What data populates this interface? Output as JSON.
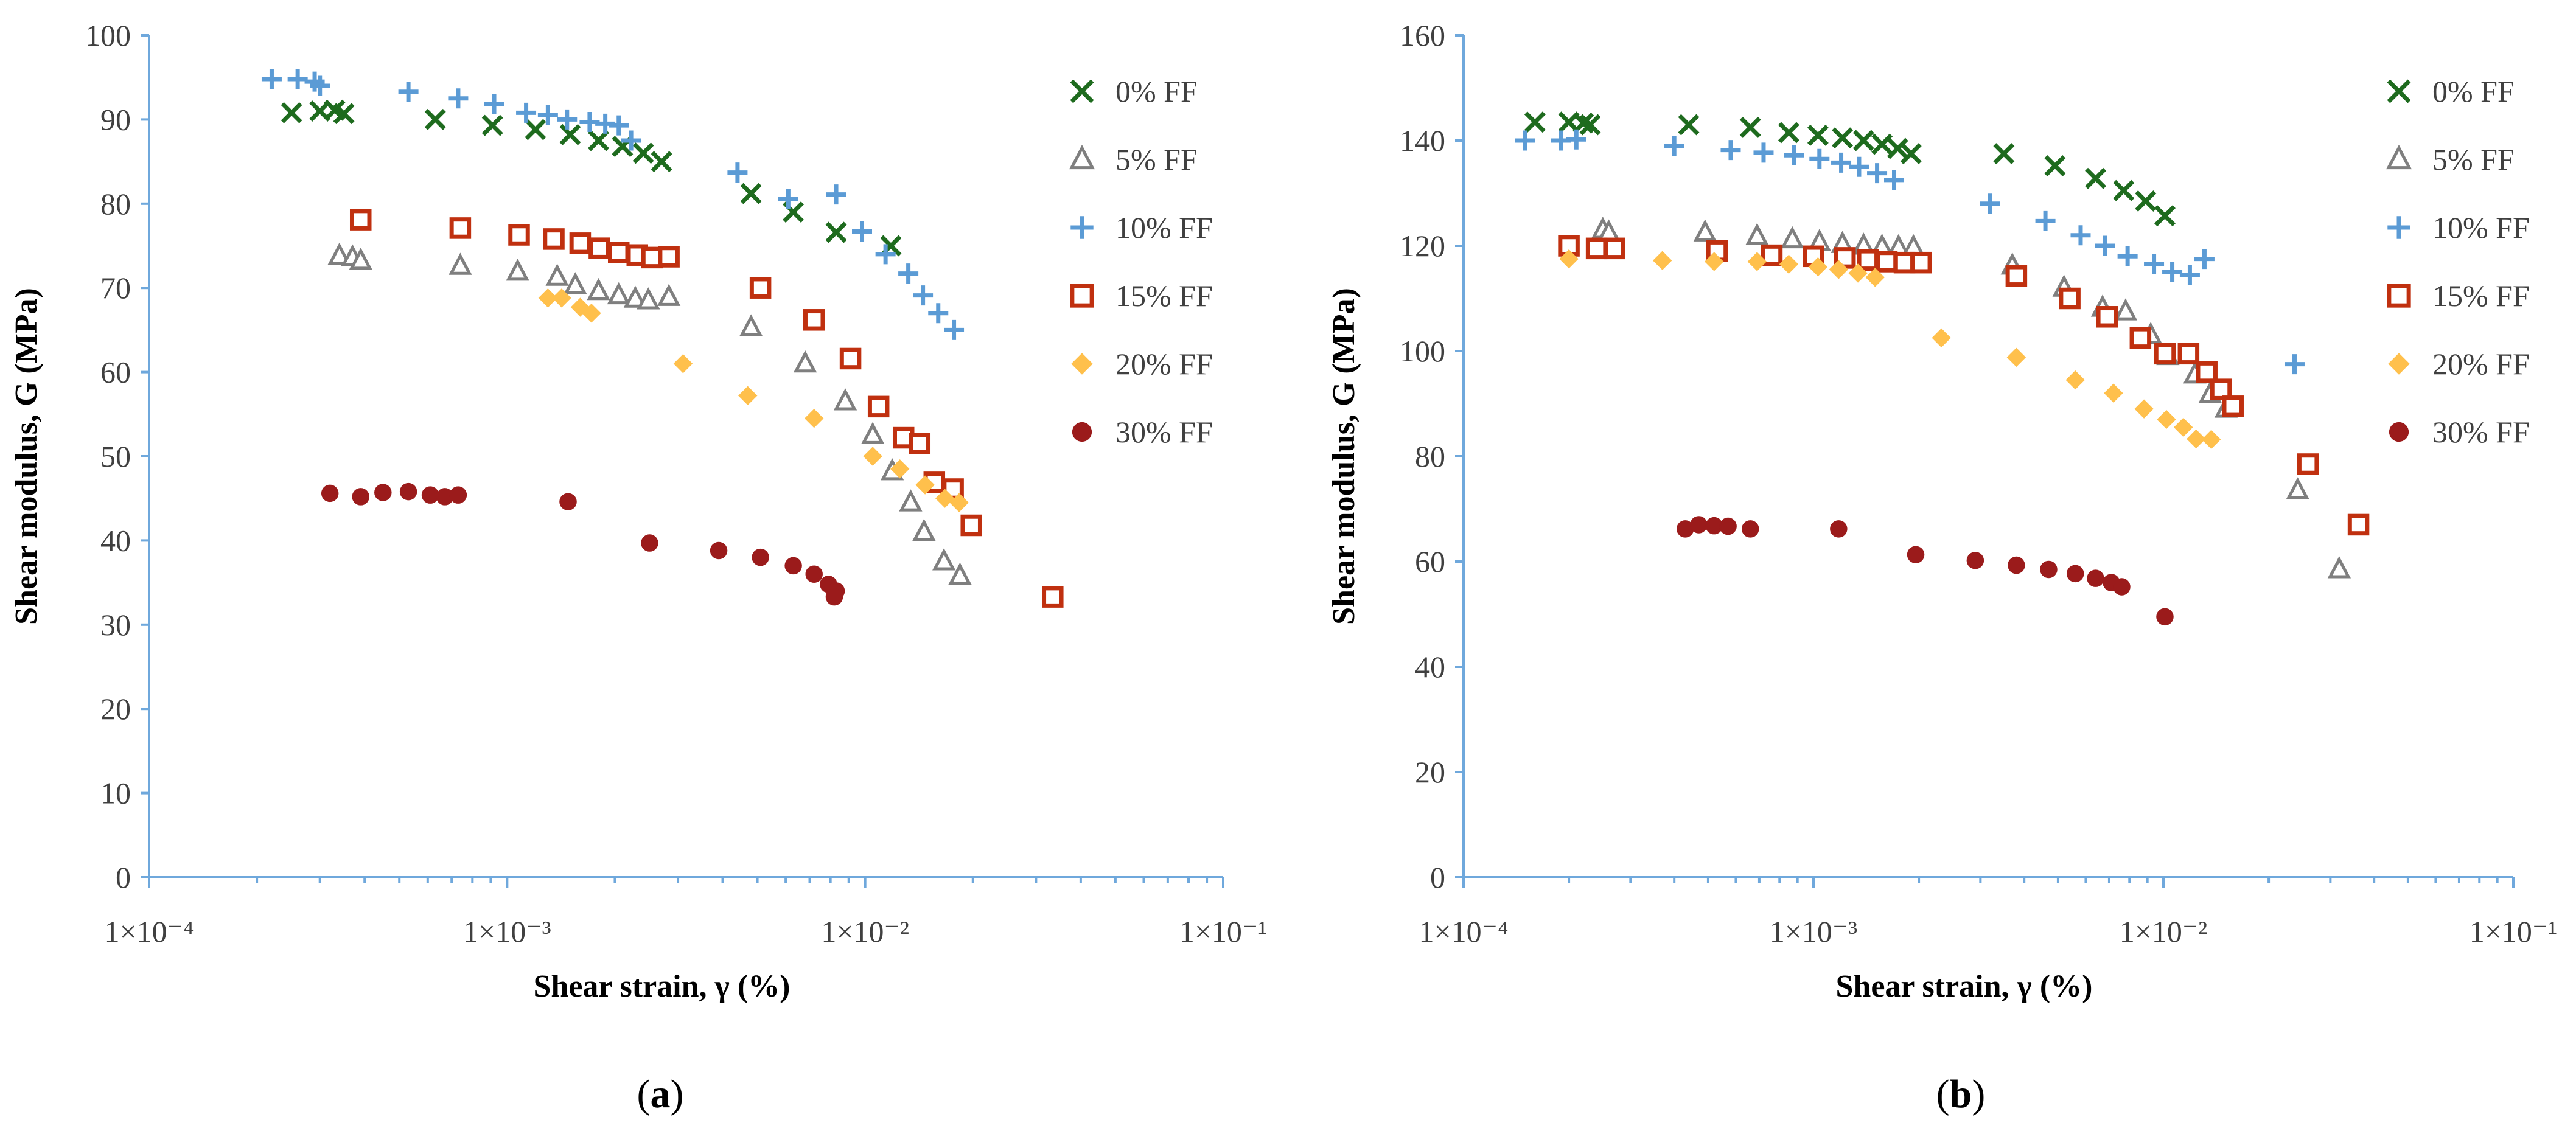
{
  "chart_data": [
    {
      "type": "scatter",
      "panel_label": "a",
      "xlabel": "Shear strain, γ (%)",
      "ylabel": "Shear modulus, G (MPa)",
      "xscale": "log",
      "xlim": [
        0.0001,
        0.1
      ],
      "ylim": [
        0,
        100
      ],
      "yticks": [
        0,
        10,
        20,
        30,
        40,
        50,
        60,
        70,
        80,
        90,
        100
      ],
      "xticks": [
        {
          "value": 0.0001,
          "label": "1×10⁻⁴"
        },
        {
          "value": 0.001,
          "label": "1×10⁻³"
        },
        {
          "value": 0.01,
          "label": "1×10⁻²"
        },
        {
          "value": 0.1,
          "label": "1×10⁻¹"
        }
      ],
      "legend_position": "top-right",
      "series": [
        {
          "name": "0% FF",
          "marker": "x",
          "color": "#1e6b1e",
          "points": [
            [
              0.00025,
              90.8
            ],
            [
              0.0003,
              91.0
            ],
            [
              0.00033,
              91.1
            ],
            [
              0.00035,
              90.7
            ],
            [
              0.00063,
              90.0
            ],
            [
              0.00091,
              89.3
            ],
            [
              0.0012,
              88.8
            ],
            [
              0.0015,
              88.2
            ],
            [
              0.0018,
              87.5
            ],
            [
              0.0021,
              86.8
            ],
            [
              0.0024,
              86.0
            ],
            [
              0.0027,
              85.0
            ],
            [
              0.0048,
              81.2
            ],
            [
              0.0063,
              79.0
            ],
            [
              0.0083,
              76.6
            ],
            [
              0.0118,
              75.0
            ]
          ]
        },
        {
          "name": "5% FF",
          "marker": "triangle",
          "color": "#7f7f7f",
          "points": [
            [
              0.00034,
              73.8
            ],
            [
              0.00037,
              73.6
            ],
            [
              0.00039,
              73.2
            ],
            [
              0.00074,
              72.6
            ],
            [
              0.00107,
              71.9
            ],
            [
              0.00138,
              71.3
            ],
            [
              0.00155,
              70.3
            ],
            [
              0.0018,
              69.6
            ],
            [
              0.00205,
              69.1
            ],
            [
              0.00228,
              68.7
            ],
            [
              0.00248,
              68.5
            ],
            [
              0.00283,
              68.9
            ],
            [
              0.0048,
              65.3
            ],
            [
              0.0068,
              61.0
            ],
            [
              0.0088,
              56.5
            ],
            [
              0.0105,
              52.5
            ],
            [
              0.0119,
              48.2
            ],
            [
              0.0134,
              44.5
            ],
            [
              0.0146,
              41.0
            ],
            [
              0.0166,
              37.5
            ],
            [
              0.0184,
              35.8
            ]
          ]
        },
        {
          "name": "10% FF",
          "marker": "plus",
          "color": "#5b9bd5",
          "points": [
            [
              0.00022,
              94.8
            ],
            [
              0.00026,
              94.8
            ],
            [
              0.00029,
              94.5
            ],
            [
              0.0003,
              94.0
            ],
            [
              0.00053,
              93.3
            ],
            [
              0.00073,
              92.5
            ],
            [
              0.00092,
              91.8
            ],
            [
              0.00113,
              90.8
            ],
            [
              0.0013,
              90.5
            ],
            [
              0.00147,
              90.0
            ],
            [
              0.0017,
              89.7
            ],
            [
              0.00188,
              89.5
            ],
            [
              0.00205,
              89.3
            ],
            [
              0.00222,
              87.5
            ],
            [
              0.0044,
              83.7
            ],
            [
              0.0061,
              80.6
            ],
            [
              0.0083,
              81.1
            ],
            [
              0.0098,
              76.7
            ],
            [
              0.0114,
              74.0
            ],
            [
              0.0132,
              71.7
            ],
            [
              0.0145,
              69.1
            ],
            [
              0.016,
              67.0
            ],
            [
              0.0177,
              65.0
            ]
          ]
        },
        {
          "name": "15% FF",
          "marker": "square",
          "color": "#c0300f",
          "points": [
            [
              0.00039,
              78.1
            ],
            [
              0.00074,
              77.1
            ],
            [
              0.00108,
              76.3
            ],
            [
              0.00135,
              75.8
            ],
            [
              0.0016,
              75.3
            ],
            [
              0.00181,
              74.7
            ],
            [
              0.00205,
              74.2
            ],
            [
              0.00231,
              73.9
            ],
            [
              0.00254,
              73.6
            ],
            [
              0.00283,
              73.7
            ],
            [
              0.0051,
              70.0
            ],
            [
              0.0072,
              66.2
            ],
            [
              0.0091,
              61.6
            ],
            [
              0.0109,
              55.9
            ],
            [
              0.0128,
              52.2
            ],
            [
              0.0142,
              51.5
            ],
            [
              0.0156,
              46.9
            ],
            [
              0.0176,
              46.1
            ],
            [
              0.0198,
              41.8
            ],
            [
              0.0334,
              33.3
            ]
          ]
        },
        {
          "name": "20% FF",
          "marker": "diamond",
          "color": "#ffc04c",
          "points": [
            [
              0.0013,
              68.8
            ],
            [
              0.00142,
              68.8
            ],
            [
              0.0016,
              67.7
            ],
            [
              0.00172,
              67.0
            ],
            [
              0.0031,
              61.0
            ],
            [
              0.0047,
              57.2
            ],
            [
              0.0072,
              54.5
            ],
            [
              0.0105,
              50.0
            ],
            [
              0.0125,
              48.5
            ],
            [
              0.0147,
              46.6
            ],
            [
              0.0167,
              45.0
            ],
            [
              0.0183,
              44.5
            ]
          ]
        },
        {
          "name": "30% FF",
          "marker": "circle",
          "color": "#9b1b1b",
          "points": [
            [
              0.00032,
              45.6
            ],
            [
              0.00039,
              45.2
            ],
            [
              0.00045,
              45.7
            ],
            [
              0.00053,
              45.8
            ],
            [
              0.00061,
              45.4
            ],
            [
              0.00067,
              45.2
            ],
            [
              0.00073,
              45.4
            ],
            [
              0.00148,
              44.6
            ],
            [
              0.0025,
              39.7
            ],
            [
              0.0039,
              38.8
            ],
            [
              0.0051,
              38.0
            ],
            [
              0.0063,
              37.0
            ],
            [
              0.0072,
              36.0
            ],
            [
              0.0079,
              34.8
            ],
            [
              0.0083,
              34.0
            ],
            [
              0.0082,
              33.3
            ]
          ]
        }
      ]
    },
    {
      "type": "scatter",
      "panel_label": "b",
      "xlabel": "Shear strain, γ (%)",
      "ylabel": "Shear modulus, G (MPa)",
      "xscale": "log",
      "xlim": [
        0.0001,
        0.1
      ],
      "ylim": [
        0,
        160
      ],
      "yticks": [
        0,
        20,
        40,
        60,
        80,
        100,
        120,
        140,
        160
      ],
      "xticks": [
        {
          "value": 0.0001,
          "label": "1×10⁻⁴"
        },
        {
          "value": 0.001,
          "label": "1×10⁻³"
        },
        {
          "value": 0.01,
          "label": "1×10⁻²"
        },
        {
          "value": 0.1,
          "label": "1×10⁻¹"
        }
      ],
      "legend_position": "top-right",
      "series": [
        {
          "name": "0% FF",
          "marker": "x",
          "color": "#1e6b1e",
          "points": [
            [
              0.00016,
              143.5
            ],
            [
              0.0002,
              143.5
            ],
            [
              0.00022,
              143.3
            ],
            [
              0.00023,
              143.0
            ],
            [
              0.00044,
              143.0
            ],
            [
              0.00066,
              142.5
            ],
            [
              0.00085,
              141.5
            ],
            [
              0.00103,
              141.0
            ],
            [
              0.00121,
              140.5
            ],
            [
              0.00139,
              140.0
            ],
            [
              0.00157,
              139.3
            ],
            [
              0.00174,
              138.5
            ],
            [
              0.0019,
              137.5
            ],
            [
              0.0035,
              137.5
            ],
            [
              0.0049,
              135.2
            ],
            [
              0.0064,
              132.8
            ],
            [
              0.0077,
              130.5
            ],
            [
              0.0089,
              128.5
            ],
            [
              0.0101,
              125.7
            ]
          ]
        },
        {
          "name": "5% FF",
          "marker": "triangle",
          "color": "#7f7f7f",
          "points": [
            [
              0.00025,
              123.0
            ],
            [
              0.00026,
              122.5
            ],
            [
              0.00049,
              122.5
            ],
            [
              0.00069,
              121.8
            ],
            [
              0.00087,
              121.2
            ],
            [
              0.00104,
              120.7
            ],
            [
              0.00121,
              120.3
            ],
            [
              0.00139,
              120.0
            ],
            [
              0.00157,
              119.8
            ],
            [
              0.00175,
              119.7
            ],
            [
              0.00193,
              119.7
            ],
            [
              0.0037,
              116.2
            ],
            [
              0.0052,
              112.0
            ],
            [
              0.0067,
              108.2
            ],
            [
              0.0078,
              107.5
            ],
            [
              0.0092,
              103.0
            ],
            [
              0.0103,
              99.0
            ],
            [
              0.0123,
              95.5
            ],
            [
              0.0136,
              91.8
            ],
            [
              0.0151,
              89.0
            ],
            [
              0.0242,
              73.5
            ],
            [
              0.0318,
              58.5
            ]
          ]
        },
        {
          "name": "10% FF",
          "marker": "plus",
          "color": "#5b9bd5",
          "points": [
            [
              0.00015,
              140.0
            ],
            [
              0.00019,
              140.0
            ],
            [
              0.00021,
              140.2
            ],
            [
              0.0004,
              139.0
            ],
            [
              0.00058,
              138.2
            ],
            [
              0.00072,
              137.7
            ],
            [
              0.00088,
              137.2
            ],
            [
              0.00104,
              136.5
            ],
            [
              0.0012,
              135.8
            ],
            [
              0.00135,
              135.0
            ],
            [
              0.00152,
              133.8
            ],
            [
              0.0017,
              132.5
            ],
            [
              0.0032,
              128.0
            ],
            [
              0.0046,
              124.7
            ],
            [
              0.0058,
              122.0
            ],
            [
              0.0068,
              120.0
            ],
            [
              0.0079,
              118.0
            ],
            [
              0.0094,
              116.5
            ],
            [
              0.0106,
              115.0
            ],
            [
              0.0119,
              114.5
            ],
            [
              0.0131,
              117.5
            ],
            [
              0.0237,
              97.5
            ]
          ]
        },
        {
          "name": "15% FF",
          "marker": "square",
          "color": "#c0300f",
          "points": [
            [
              0.0002,
              120.0
            ],
            [
              0.00024,
              119.5
            ],
            [
              0.00027,
              119.5
            ],
            [
              0.00053,
              119.0
            ],
            [
              0.00076,
              118.2
            ],
            [
              0.001,
              118.0
            ],
            [
              0.00123,
              117.7
            ],
            [
              0.00143,
              117.3
            ],
            [
              0.00162,
              117.0
            ],
            [
              0.00182,
              116.8
            ],
            [
              0.00203,
              116.8
            ],
            [
              0.0038,
              114.3
            ],
            [
              0.0054,
              110.0
            ],
            [
              0.0069,
              106.5
            ],
            [
              0.0086,
              102.5
            ],
            [
              0.0101,
              99.5
            ],
            [
              0.0118,
              99.5
            ],
            [
              0.0133,
              96.0
            ],
            [
              0.0146,
              92.7
            ],
            [
              0.0158,
              89.5
            ],
            [
              0.0259,
              78.5
            ],
            [
              0.0361,
              67.0
            ]
          ]
        },
        {
          "name": "20% FF",
          "marker": "diamond",
          "color": "#ffc04c",
          "points": [
            [
              0.0002,
              117.5
            ],
            [
              0.00037,
              117.2
            ],
            [
              0.00052,
              117.0
            ],
            [
              0.00069,
              117.0
            ],
            [
              0.00085,
              116.5
            ],
            [
              0.00103,
              116.0
            ],
            [
              0.00118,
              115.5
            ],
            [
              0.00134,
              114.8
            ],
            [
              0.0015,
              114.0
            ],
            [
              0.00232,
              102.5
            ],
            [
              0.0038,
              98.8
            ],
            [
              0.0056,
              94.5
            ],
            [
              0.0072,
              92.0
            ],
            [
              0.0088,
              89.0
            ],
            [
              0.0102,
              87.0
            ],
            [
              0.0114,
              85.5
            ],
            [
              0.0124,
              83.3
            ],
            [
              0.0137,
              83.2
            ]
          ]
        },
        {
          "name": "30% FF",
          "marker": "circle",
          "color": "#9b1b1b",
          "points": [
            [
              0.00043,
              66.2
            ],
            [
              0.00047,
              67.0
            ],
            [
              0.00052,
              66.8
            ],
            [
              0.00057,
              66.7
            ],
            [
              0.00066,
              66.2
            ],
            [
              0.00118,
              66.2
            ],
            [
              0.00196,
              61.3
            ],
            [
              0.0029,
              60.2
            ],
            [
              0.0038,
              59.3
            ],
            [
              0.0047,
              58.5
            ],
            [
              0.0056,
              57.7
            ],
            [
              0.0064,
              56.8
            ],
            [
              0.0071,
              56.0
            ],
            [
              0.0076,
              55.2
            ],
            [
              0.0101,
              49.5
            ]
          ]
        }
      ]
    }
  ]
}
